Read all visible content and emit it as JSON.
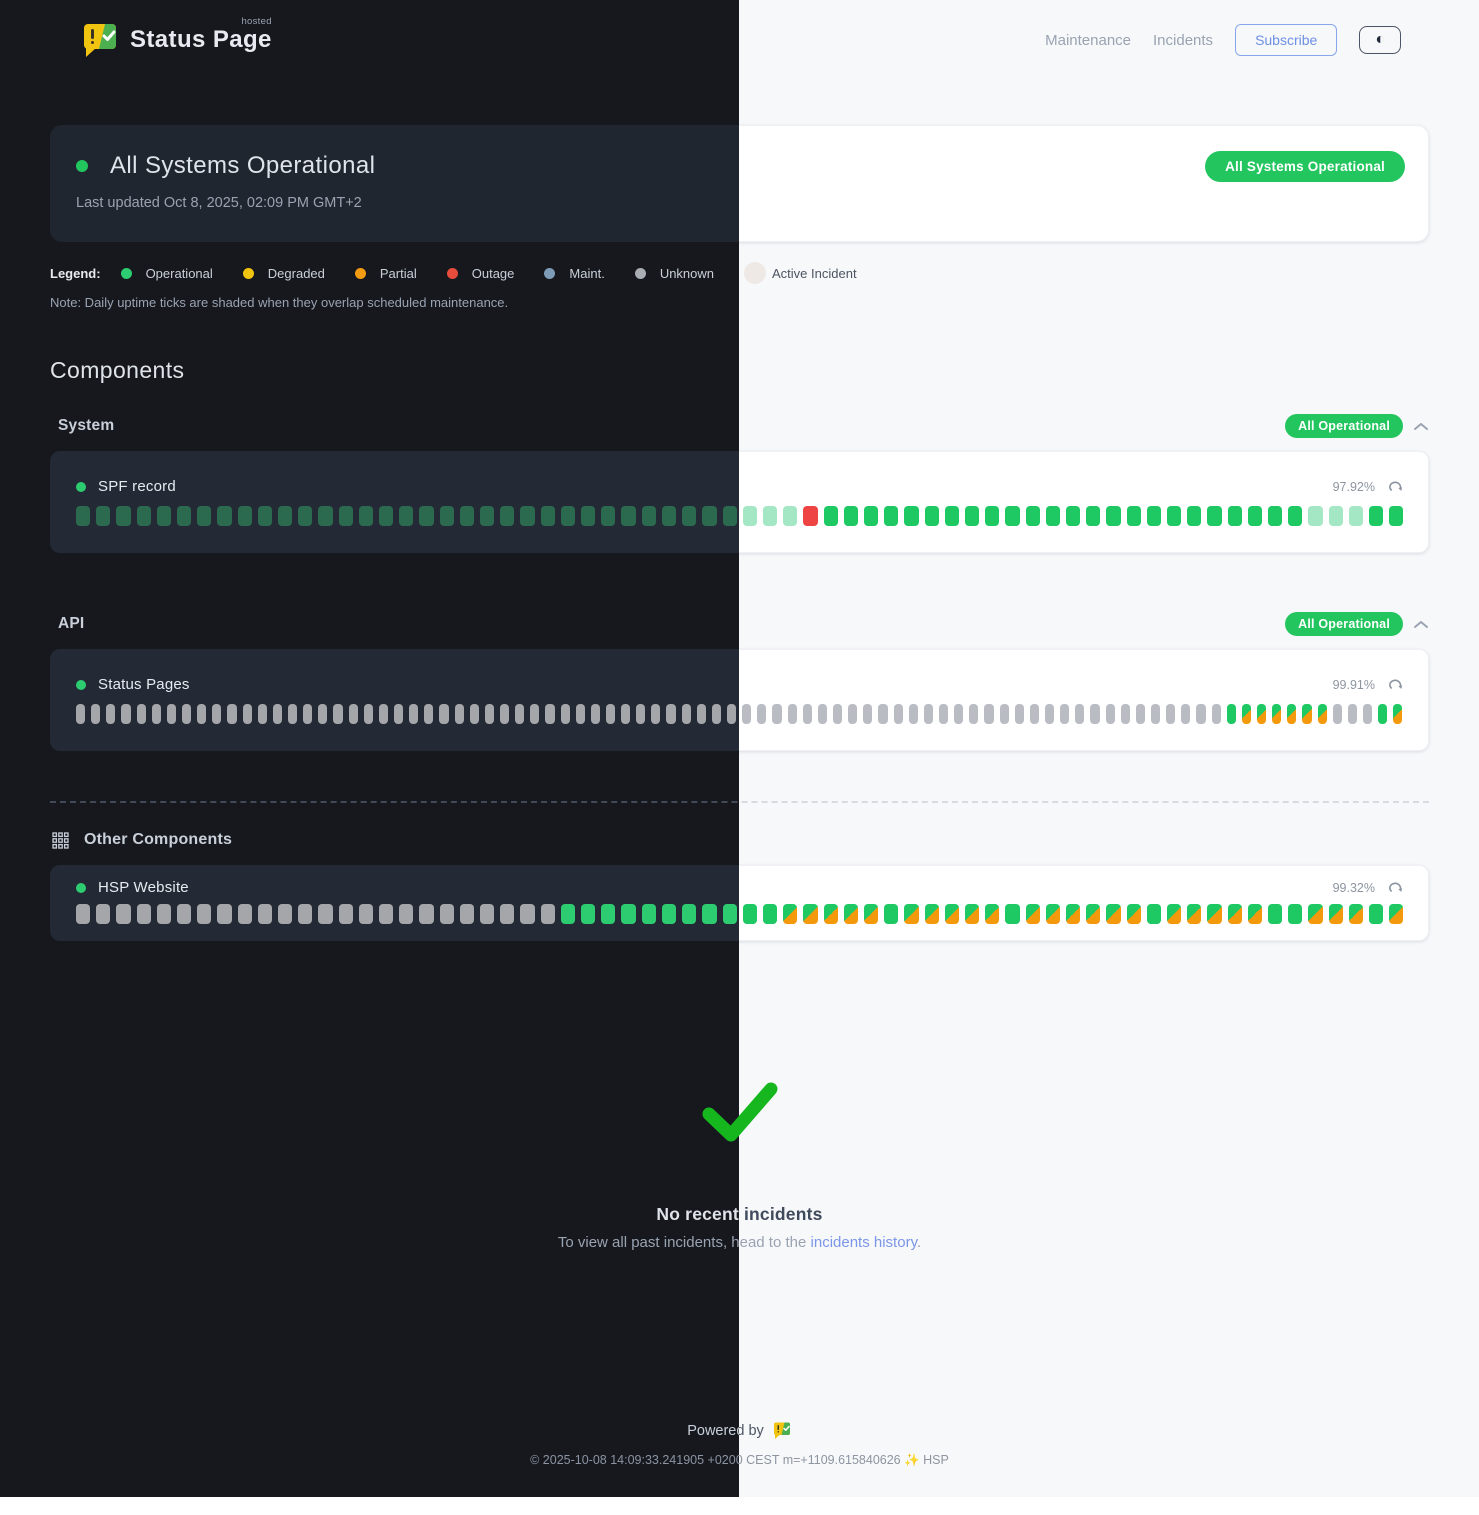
{
  "brand": {
    "title": "Status Page",
    "superscript": "hosted"
  },
  "nav": {
    "maintenance_label": "Maintenance",
    "incidents_label": "Incidents",
    "subscribe_label": "Subscribe",
    "theme_toggle_icon": "◐"
  },
  "hero": {
    "title": "All Systems Operational",
    "last_updated": "Last updated Oct 8, 2025, 02:09 PM GMT+2",
    "status_badge": "All Systems Operational"
  },
  "legend": {
    "label": "Legend:",
    "items": [
      {
        "label": "Operational",
        "color": "#2ecc71"
      },
      {
        "label": "Degraded",
        "color": "#f1c40f"
      },
      {
        "label": "Partial",
        "color": "#f39c12"
      },
      {
        "label": "Outage",
        "color": "#e74c3c"
      },
      {
        "label": "Maint.",
        "color": "#7e9cb8"
      },
      {
        "label": "Unknown",
        "color": "#a9adb4"
      },
      {
        "label": "Active Incident",
        "color_var": "--active-dot",
        "big": true
      }
    ],
    "note": "Note: Daily uptime ticks are shaded when they overlap scheduled maintenance."
  },
  "components": {
    "heading": "Components",
    "groups": [
      {
        "name": "System",
        "badge": "All Operational",
        "items": [
          {
            "name": "SPF record",
            "uptime": "97.92%",
            "ticks": [
              {
                "state": "faded",
                "count": 36
              },
              {
                "state": "outage",
                "count": 1
              },
              {
                "state": "op",
                "count": 24
              },
              {
                "state": "faded",
                "count": 3
              },
              {
                "state": "op",
                "count": 2
              }
            ]
          }
        ]
      },
      {
        "name": "API",
        "badge": "All Operational",
        "items": [
          {
            "name": "Status Pages",
            "uptime": "99.91%",
            "ticks": [
              {
                "state": "unknown",
                "count": 76
              },
              {
                "state": "op",
                "count": 1
              },
              {
                "state": "maint",
                "count": 6
              },
              {
                "state": "unknown",
                "count": 3
              },
              {
                "state": "op",
                "count": 1
              },
              {
                "state": "maint",
                "count": 1
              }
            ]
          }
        ]
      }
    ],
    "other": {
      "heading": "Other Components",
      "items": [
        {
          "name": "HSP Website",
          "uptime": "99.32%",
          "ticks": [
            {
              "state": "unknown",
              "count": 24
            },
            {
              "state": "op",
              "count": 11
            },
            {
              "state": "maint",
              "count": 5
            },
            {
              "state": "op",
              "count": 1
            },
            {
              "state": "maint",
              "count": 5
            },
            {
              "state": "op",
              "count": 1
            },
            {
              "state": "maint",
              "count": 6
            },
            {
              "state": "op",
              "count": 1
            },
            {
              "state": "maint",
              "count": 5
            },
            {
              "state": "op",
              "count": 2
            },
            {
              "state": "maint",
              "count": 3
            },
            {
              "state": "op",
              "count": 1
            },
            {
              "state": "maint",
              "count": 1
            }
          ]
        }
      ]
    }
  },
  "incidents_panel": {
    "title": "No recent incidents",
    "subtitle_prefix": "To view all past incidents, head to the ",
    "link_label": "incidents history",
    "subtitle_suffix": "."
  },
  "footer": {
    "powered_by": "Powered by",
    "copyright": "© 2025-10-08 14:09:33.241905 +0200 CEST m=+1109.615840626 ✨ HSP"
  },
  "colors": {
    "accent_green": "#22c55e",
    "operational_green": "#2ecc71",
    "degraded_yellow": "#f1c40f",
    "partial_orange": "#f39c12",
    "outage_red": "#e74c3c",
    "maintenance_blue": "#7e9cb8",
    "unknown_gray": "#a9adb4",
    "link_blue": "#7b96e8",
    "subscribe_blue": "#6d8fe4",
    "checkmark_green": "#16b71e"
  }
}
